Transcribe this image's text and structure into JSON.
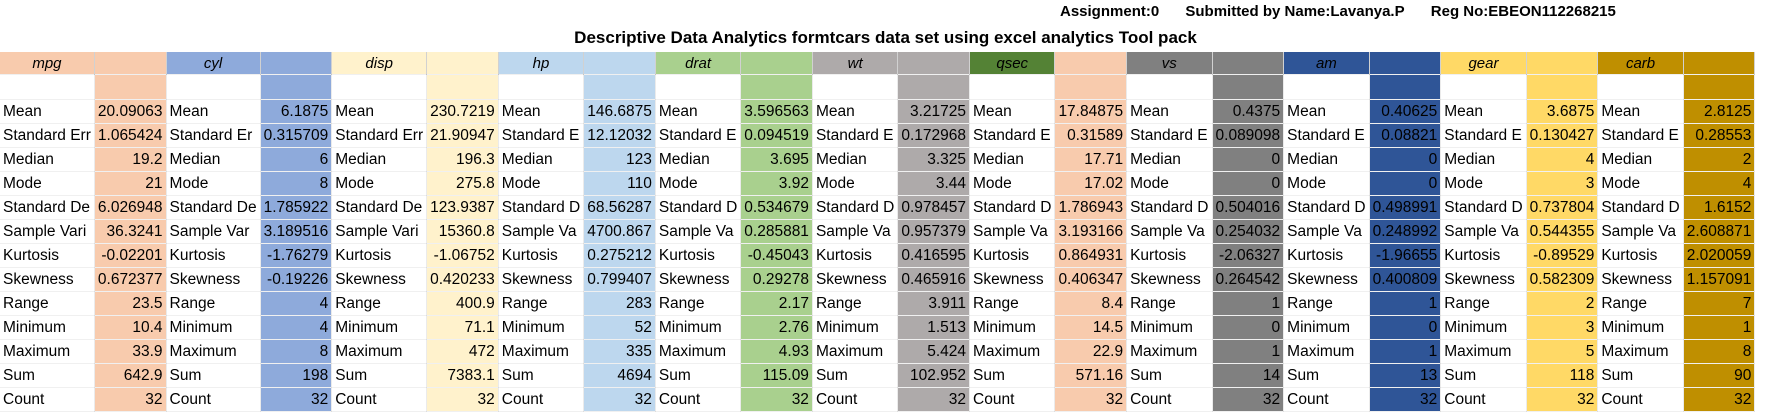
{
  "header": {
    "assignment": "Assignment:0",
    "submitted_by": "Submitted by Name:Lavanya.P",
    "reg_no": "Reg No:EBEON112268215"
  },
  "title": "Descriptive Data Analytics formtcars data set using excel analytics Tool pack",
  "stat_labels": [
    "Mean",
    "Standard Err",
    "Median",
    "Mode",
    "Standard De",
    "Sample Vari",
    "Kurtosis",
    "Skewness",
    "Range",
    "Minimum",
    "Maximum",
    "Sum",
    "Count"
  ],
  "variables": [
    {
      "name": "mpg",
      "header_bg": "#f8cbad",
      "label_bg": "#ffffff",
      "value_bg": "#f8cbad",
      "labels": [
        "Mean",
        "Standard Err",
        "Median",
        "Mode",
        "Standard De",
        "Sample Vari",
        "Kurtosis",
        "Skewness",
        "Range",
        "Minimum",
        "Maximum",
        "Sum",
        "Count"
      ],
      "values": [
        "20.09063",
        "1.065424",
        "19.2",
        "21",
        "6.026948",
        "36.3241",
        "-0.02201",
        "0.672377",
        "23.5",
        "10.4",
        "33.9",
        "642.9",
        "32"
      ]
    },
    {
      "name": "cyl",
      "header_bg": "#8eaadb",
      "label_bg": "#ffffff",
      "value_bg": "#8eaadb",
      "labels": [
        "Mean",
        "Standard Er",
        "Median",
        "Mode",
        "Standard De",
        "Sample Var",
        "Kurtosis",
        "Skewness",
        "Range",
        "Minimum",
        "Maximum",
        "Sum",
        "Count"
      ],
      "values": [
        "6.1875",
        "0.315709",
        "6",
        "8",
        "1.785922",
        "3.189516",
        "-1.76279",
        "-0.19226",
        "4",
        "4",
        "8",
        "198",
        "32"
      ]
    },
    {
      "name": "disp",
      "header_bg": "#fff2cc",
      "label_bg": "#ffffff",
      "value_bg": "#fff2cc",
      "labels": [
        "Mean",
        "Standard Err",
        "Median",
        "Mode",
        "Standard De",
        "Sample Vari",
        "Kurtosis",
        "Skewness",
        "Range",
        "Minimum",
        "Maximum",
        "Sum",
        "Count"
      ],
      "values": [
        "230.7219",
        "21.90947",
        "196.3",
        "275.8",
        "123.9387",
        "15360.8",
        "-1.06752",
        "0.420233",
        "400.9",
        "71.1",
        "472",
        "7383.1",
        "32"
      ]
    },
    {
      "name": "hp",
      "header_bg": "#bdd7ee",
      "label_bg": "#ffffff",
      "value_bg": "#bdd7ee",
      "labels": [
        "Mean",
        "Standard E",
        "Median",
        "Mode",
        "Standard D",
        "Sample Va",
        "Kurtosis",
        "Skewness",
        "Range",
        "Minimum",
        "Maximum",
        "Sum",
        "Count"
      ],
      "values": [
        "146.6875",
        "12.12032",
        "123",
        "110",
        "68.56287",
        "4700.867",
        "0.275212",
        "0.799407",
        "283",
        "52",
        "335",
        "4694",
        "32"
      ]
    },
    {
      "name": "drat",
      "header_bg": "#a9d08e",
      "label_bg": "#ffffff",
      "value_bg": "#a9d08e",
      "labels": [
        "Mean",
        "Standard E",
        "Median",
        "Mode",
        "Standard D",
        "Sample Va",
        "Kurtosis",
        "Skewness",
        "Range",
        "Minimum",
        "Maximum",
        "Sum",
        "Count"
      ],
      "values": [
        "3.596563",
        "0.094519",
        "3.695",
        "3.92",
        "0.534679",
        "0.285881",
        "-0.45043",
        "0.29278",
        "2.17",
        "2.76",
        "4.93",
        "115.09",
        "32"
      ]
    },
    {
      "name": "wt",
      "header_bg": "#aeaaaa",
      "label_bg": "#ffffff",
      "value_bg": "#aeaaaa",
      "labels": [
        "Mean",
        "Standard E",
        "Median",
        "Mode",
        "Standard D",
        "Sample Va",
        "Kurtosis",
        "Skewness",
        "Range",
        "Minimum",
        "Maximum",
        "Sum",
        "Count"
      ],
      "values": [
        "3.21725",
        "0.172968",
        "3.325",
        "3.44",
        "0.978457",
        "0.957379",
        "0.416595",
        "0.465916",
        "3.911",
        "1.513",
        "5.424",
        "102.952",
        "32"
      ]
    },
    {
      "name": "qsec",
      "header_bg": "#548235",
      "label_bg": "#ffffff",
      "value_bg": "#f8cbad",
      "value_header_bg": "#f8cbad",
      "labels": [
        "Mean",
        "Standard E",
        "Median",
        "Mode",
        "Standard D",
        "Sample Va",
        "Kurtosis",
        "Skewness",
        "Range",
        "Minimum",
        "Maximum",
        "Sum",
        "Count"
      ],
      "values": [
        "17.84875",
        "0.31589",
        "17.71",
        "17.02",
        "1.786943",
        "3.193166",
        "0.864931",
        "0.406347",
        "8.4",
        "14.5",
        "22.9",
        "571.16",
        "32"
      ]
    },
    {
      "name": "vs",
      "header_bg": "#808080",
      "label_bg": "#ffffff",
      "value_bg": "#808080",
      "labels": [
        "Mean",
        "Standard E",
        "Median",
        "Mode",
        "Standard D",
        "Sample Va",
        "Kurtosis",
        "Skewness",
        "Range",
        "Minimum",
        "Maximum",
        "Sum",
        "Count"
      ],
      "values": [
        "0.4375",
        "0.089098",
        "0",
        "0",
        "0.504016",
        "0.254032",
        "-2.06327",
        "0.264542",
        "1",
        "0",
        "1",
        "14",
        "32"
      ]
    },
    {
      "name": "am",
      "header_bg": "#2f5597",
      "label_bg": "#ffffff",
      "value_bg": "#2f5597",
      "labels": [
        "Mean",
        "Standard E",
        "Median",
        "Mode",
        "Standard D",
        "Sample Va",
        "Kurtosis",
        "Skewness",
        "Range",
        "Minimum",
        "Maximum",
        "Sum",
        "Count"
      ],
      "values": [
        "0.40625",
        "0.08821",
        "0",
        "0",
        "0.498991",
        "0.248992",
        "-1.96655",
        "0.400809",
        "1",
        "0",
        "1",
        "13",
        "32"
      ]
    },
    {
      "name": "gear",
      "header_bg": "#ffd966",
      "label_bg": "#ffffff",
      "value_bg": "#ffd966",
      "labels": [
        "Mean",
        "Standard E",
        "Median",
        "Mode",
        "Standard D",
        "Sample Va",
        "Kurtosis",
        "Skewness",
        "Range",
        "Minimum",
        "Maximum",
        "Sum",
        "Count"
      ],
      "values": [
        "3.6875",
        "0.130427",
        "4",
        "3",
        "0.737804",
        "0.544355",
        "-0.89529",
        "0.582309",
        "2",
        "3",
        "5",
        "118",
        "32"
      ]
    },
    {
      "name": "carb",
      "header_bg": "#bf8f00",
      "label_bg": "#ffffff",
      "value_bg": "#bf8f00",
      "labels": [
        "Mean",
        "Standard E",
        "Median",
        "Mode",
        "Standard D",
        "Sample Va",
        "Kurtosis",
        "Skewness",
        "Range",
        "Minimum",
        "Maximum",
        "Sum",
        "Count"
      ],
      "values": [
        "2.8125",
        "0.28553",
        "2",
        "4",
        "1.6152",
        "2.608871",
        "2.020059",
        "1.157091",
        "7",
        "1",
        "8",
        "90",
        "32"
      ]
    }
  ]
}
